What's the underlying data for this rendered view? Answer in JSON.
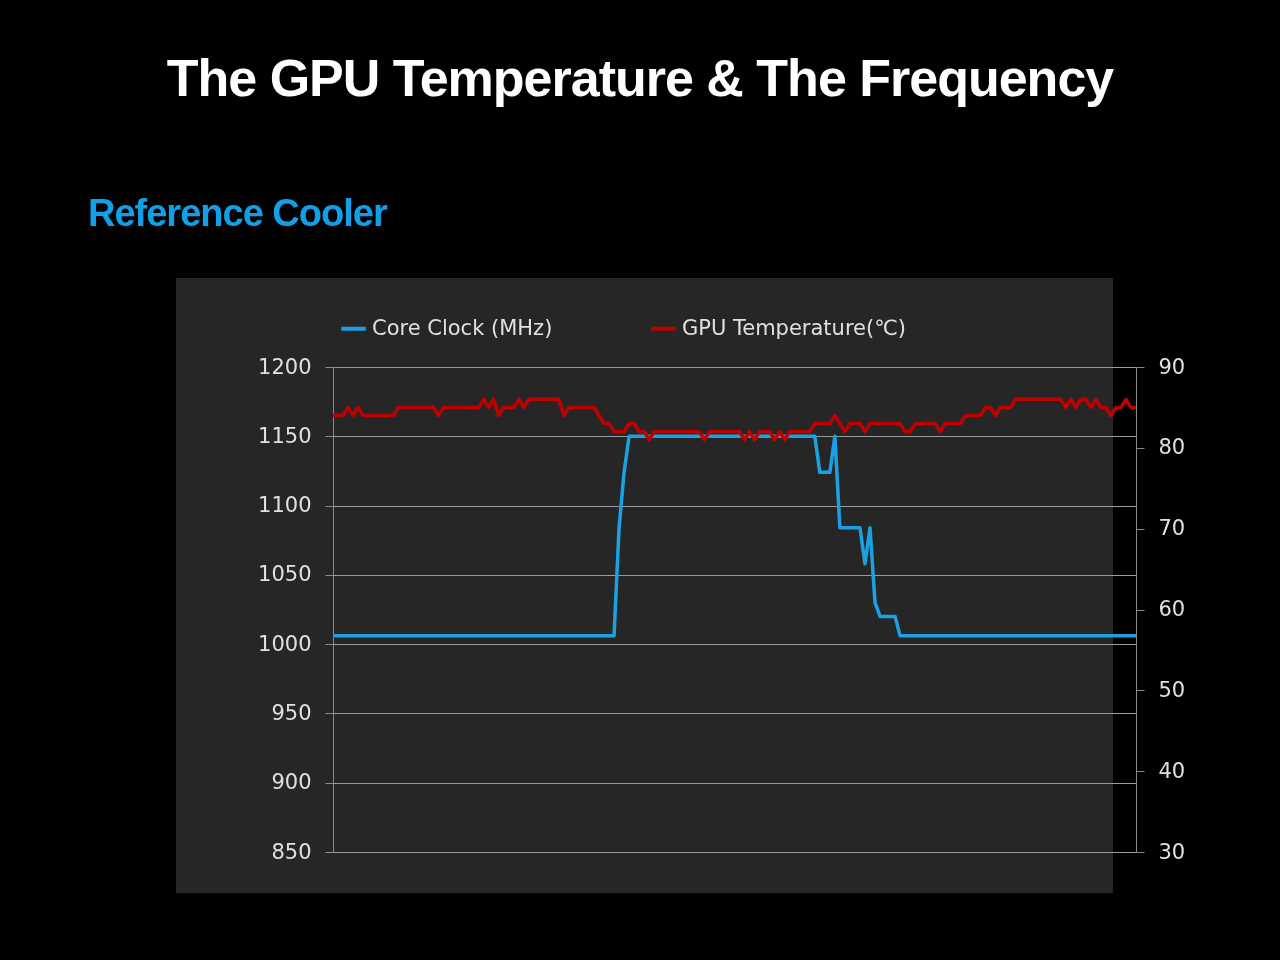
{
  "chart_data": {
    "type": "line",
    "title": "The GPU Temperature & The Frequency",
    "subtitle": "Reference Cooler",
    "categories": [
      null,
      null,
      null,
      null,
      null,
      null,
      null,
      null,
      null,
      null,
      null,
      null,
      null,
      null,
      null,
      null,
      null,
      null,
      null,
      null,
      null,
      null,
      null,
      null,
      null,
      null,
      null,
      null,
      null,
      null,
      null,
      null,
      null,
      null,
      null,
      null,
      null,
      null,
      null,
      null,
      null,
      null,
      null,
      null,
      null,
      null,
      null,
      null,
      null,
      null,
      null,
      null,
      null,
      null,
      null,
      null,
      null,
      null,
      null,
      null,
      null,
      null,
      null,
      null,
      null,
      null,
      null,
      null,
      null,
      null,
      null,
      null,
      null,
      null,
      null,
      null,
      null,
      null,
      null,
      null,
      null,
      null,
      null,
      null,
      null,
      null,
      null,
      null,
      null,
      null,
      null,
      null,
      null,
      null,
      null,
      null,
      null,
      null,
      null,
      null,
      null,
      null,
      null,
      null,
      null,
      null,
      null,
      null,
      null,
      null,
      null,
      null,
      null,
      null,
      null,
      null,
      null,
      null,
      null,
      null,
      null,
      null,
      null,
      null,
      null,
      null,
      null,
      null,
      null,
      null,
      null,
      null,
      null,
      null,
      null,
      null,
      null,
      null,
      null,
      null,
      null,
      null,
      null,
      null,
      null,
      null,
      null,
      null,
      null,
      null,
      null,
      null,
      null,
      null,
      null,
      null,
      null,
      null,
      null,
      null,
      null
    ],
    "series": [
      {
        "name": "Core Clock (MHz)",
        "color": "#1ba1e2",
        "values": [
          1006,
          1006,
          1006,
          1006,
          1006,
          1006,
          1006,
          1006,
          1006,
          1006,
          1006,
          1006,
          1006,
          1006,
          1006,
          1006,
          1006,
          1006,
          1006,
          1006,
          1006,
          1006,
          1006,
          1006,
          1006,
          1006,
          1006,
          1006,
          1006,
          1006,
          1006,
          1006,
          1006,
          1006,
          1006,
          1006,
          1006,
          1006,
          1006,
          1006,
          1006,
          1006,
          1006,
          1006,
          1006,
          1006,
          1006,
          1006,
          1006,
          1006,
          1006,
          1006,
          1006,
          1006,
          1006,
          1006,
          1006,
          1084,
          1124,
          1150,
          1150,
          1150,
          1150,
          1150,
          1150,
          1150,
          1150,
          1150,
          1150,
          1150,
          1150,
          1150,
          1150,
          1150,
          1150,
          1150,
          1150,
          1150,
          1150,
          1150,
          1150,
          1150,
          1150,
          1150,
          1150,
          1150,
          1150,
          1150,
          1150,
          1150,
          1150,
          1150,
          1150,
          1150,
          1150,
          1150,
          1150,
          1124,
          1124,
          1124,
          1150,
          1084,
          1084,
          1084,
          1084,
          1084,
          1058,
          1084,
          1030,
          1020,
          1020,
          1020,
          1020,
          1006,
          1006,
          1006,
          1006,
          1006,
          1006,
          1006,
          1006,
          1006,
          1006,
          1006,
          1006,
          1006,
          1006,
          1006,
          1006,
          1006,
          1006,
          1006,
          1006,
          1006,
          1006,
          1006,
          1006,
          1006,
          1006,
          1006,
          1006,
          1006,
          1006,
          1006,
          1006,
          1006,
          1006,
          1006,
          1006,
          1006,
          1006,
          1006,
          1006,
          1006,
          1006,
          1006,
          1006,
          1006,
          1006,
          1006,
          1006
        ]
      },
      {
        "name": "GPU Temperature(℃)",
        "color": "#c00000",
        "axis": "y2",
        "values": [
          84,
          84,
          84,
          85,
          84,
          85,
          84,
          84,
          84,
          84,
          84,
          84,
          84,
          85,
          85,
          85,
          85,
          85,
          85,
          85,
          85,
          84,
          85,
          85,
          85,
          85,
          85,
          85,
          85,
          85,
          86,
          85,
          86,
          84,
          85,
          85,
          85,
          86,
          85,
          86,
          86,
          86,
          86,
          86,
          86,
          86,
          84,
          85,
          85,
          85,
          85,
          85,
          85,
          84,
          83,
          83,
          82,
          82,
          82,
          83,
          83,
          82,
          82,
          81,
          82,
          82,
          82,
          82,
          82,
          82,
          82,
          82,
          82,
          82,
          81,
          82,
          82,
          82,
          82,
          82,
          82,
          82,
          81,
          82,
          81,
          82,
          82,
          82,
          81,
          82,
          81,
          82,
          82,
          82,
          82,
          82,
          83,
          83,
          83,
          83,
          84,
          83,
          82,
          83,
          83,
          83,
          82,
          83,
          83,
          83,
          83,
          83,
          83,
          83,
          82,
          82,
          83,
          83,
          83,
          83,
          83,
          82,
          83,
          83,
          83,
          83,
          84,
          84,
          84,
          84,
          85,
          85,
          84,
          85,
          85,
          85,
          86,
          86,
          86,
          86,
          86,
          86,
          86,
          86,
          86,
          86,
          85,
          86,
          85,
          86,
          86,
          85,
          86,
          85,
          85,
          84,
          85,
          85,
          86,
          85,
          85
        ]
      }
    ],
    "ylim": [
      850,
      1200
    ],
    "yticks": [
      850,
      900,
      950,
      1000,
      1050,
      1100,
      1150,
      1200
    ],
    "y2lim": [
      30,
      90
    ],
    "y2ticks": [
      30,
      40,
      50,
      60,
      70,
      80,
      90
    ],
    "grid": "y",
    "legend": "top"
  }
}
